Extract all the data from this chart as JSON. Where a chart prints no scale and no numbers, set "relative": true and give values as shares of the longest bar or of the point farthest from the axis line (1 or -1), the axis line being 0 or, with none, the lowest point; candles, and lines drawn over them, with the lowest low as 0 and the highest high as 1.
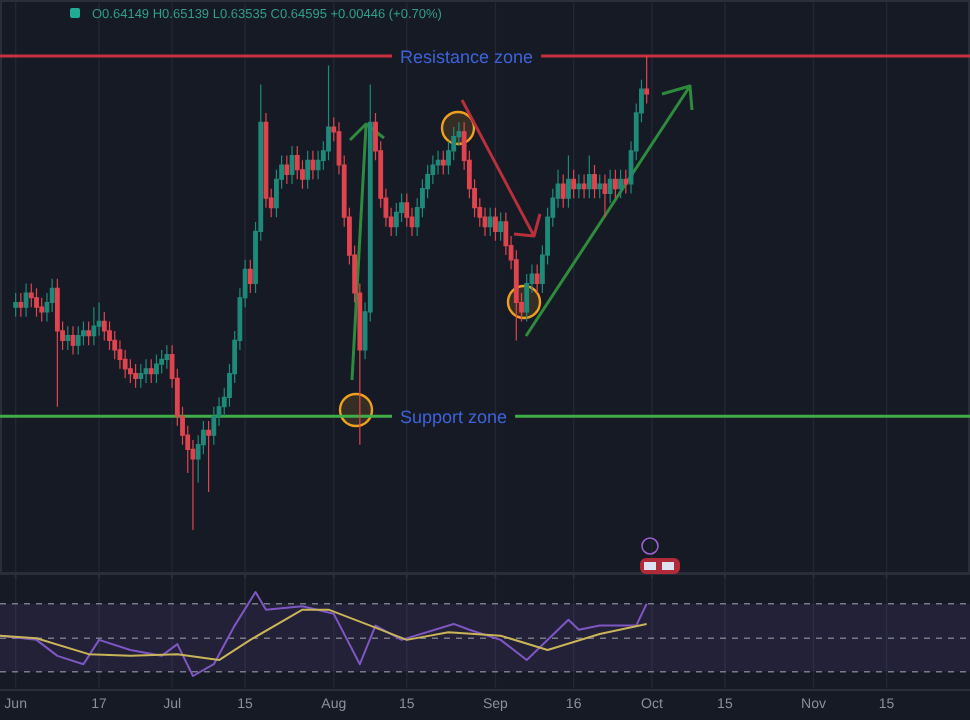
{
  "chart_data": [
    {
      "type": "candlestick",
      "relative": true,
      "tick_labels": false,
      "grid": "x",
      "annotations": [
        "O0.64149 H0.65139 L0.63535 C0.64595 +0.00446 (+0.70%)"
      ],
      "xlim": [
        "--05-29",
        "--12-01"
      ],
      "xticks": [
        {
          "value": "--06-01",
          "label": null
        },
        {
          "value": "--06-17",
          "label": null
        },
        {
          "value": "--07-01",
          "label": null
        },
        {
          "value": "--07-15",
          "label": null
        },
        {
          "value": "--08-01",
          "label": null
        },
        {
          "value": "--08-15",
          "label": null
        },
        {
          "value": "--09-01",
          "label": null
        },
        {
          "value": "--09-16",
          "label": null
        },
        {
          "value": "--10-01",
          "label": null
        },
        {
          "value": "--10-15",
          "label": null
        },
        {
          "value": "--11-01",
          "label": null
        },
        {
          "value": "--11-15",
          "label": null
        }
      ],
      "ref_lines": [
        {
          "axis": "y",
          "value": 1.0,
          "label": "Resistance zone",
          "color": "#c8303f"
        },
        {
          "axis": "y",
          "value": 0.24,
          "label": "Support zone",
          "color": "#3fae49"
        }
      ],
      "x": [
        "--06-01",
        "--06-02",
        "--06-03",
        "--06-04",
        "--06-05",
        "--06-06",
        "--06-07",
        "--06-08",
        "--06-09",
        "--06-10",
        "--06-11",
        "--06-12",
        "--06-13",
        "--06-14",
        "--06-15",
        "--06-16",
        "--06-17",
        "--06-18",
        "--06-19",
        "--06-20",
        "--06-21",
        "--06-22",
        "--06-23",
        "--06-24",
        "--06-25",
        "--06-26",
        "--06-27",
        "--06-28",
        "--06-29",
        "--06-30",
        "--07-01",
        "--07-02",
        "--07-03",
        "--07-04",
        "--07-05",
        "--07-06",
        "--07-07",
        "--07-08",
        "--07-09",
        "--07-10",
        "--07-11",
        "--07-12",
        "--07-13",
        "--07-14",
        "--07-15",
        "--07-16",
        "--07-17",
        "--07-18",
        "--07-19",
        "--07-20",
        "--07-21",
        "--07-22",
        "--07-23",
        "--07-24",
        "--07-25",
        "--07-26",
        "--07-27",
        "--07-28",
        "--07-29",
        "--07-30",
        "--07-31",
        "--08-01",
        "--08-02",
        "--08-03",
        "--08-04",
        "--08-05",
        "--08-06",
        "--08-07",
        "--08-08",
        "--08-09",
        "--08-10",
        "--08-11",
        "--08-12",
        "--08-13",
        "--08-14",
        "--08-15",
        "--08-16",
        "--08-17",
        "--08-18",
        "--08-19",
        "--08-20",
        "--08-21",
        "--08-22",
        "--08-23",
        "--08-24",
        "--08-25",
        "--08-26",
        "--08-27",
        "--08-28",
        "--08-29",
        "--08-30",
        "--08-31",
        "--09-01",
        "--09-02",
        "--09-03",
        "--09-04",
        "--09-05",
        "--09-06",
        "--09-07",
        "--09-08",
        "--09-09",
        "--09-10",
        "--09-11",
        "--09-12",
        "--09-13",
        "--09-14",
        "--09-15",
        "--09-16",
        "--09-17",
        "--09-18",
        "--09-19",
        "--09-20",
        "--09-21",
        "--09-22",
        "--09-23",
        "--09-24",
        "--09-25",
        "--09-26",
        "--09-27",
        "--09-28",
        "--09-29",
        "--09-30"
      ],
      "ohlc": [
        [
          0.47,
          0.5,
          0.45,
          0.48
        ],
        [
          0.48,
          0.5,
          0.45,
          0.47
        ],
        [
          0.47,
          0.52,
          0.45,
          0.5
        ],
        [
          0.5,
          0.52,
          0.47,
          0.49
        ],
        [
          0.49,
          0.51,
          0.45,
          0.47
        ],
        [
          0.47,
          0.49,
          0.44,
          0.46
        ],
        [
          0.46,
          0.5,
          0.44,
          0.48
        ],
        [
          0.48,
          0.53,
          0.46,
          0.51
        ],
        [
          0.51,
          0.53,
          0.26,
          0.42
        ],
        [
          0.42,
          0.44,
          0.38,
          0.4
        ],
        [
          0.4,
          0.43,
          0.38,
          0.41
        ],
        [
          0.41,
          0.43,
          0.37,
          0.39
        ],
        [
          0.39,
          0.43,
          0.37,
          0.41
        ],
        [
          0.41,
          0.44,
          0.39,
          0.42
        ],
        [
          0.42,
          0.44,
          0.39,
          0.41
        ],
        [
          0.41,
          0.47,
          0.39,
          0.43
        ],
        [
          0.43,
          0.48,
          0.41,
          0.44
        ],
        [
          0.44,
          0.46,
          0.4,
          0.42
        ],
        [
          0.42,
          0.44,
          0.38,
          0.4
        ],
        [
          0.4,
          0.42,
          0.36,
          0.38
        ],
        [
          0.38,
          0.4,
          0.34,
          0.36
        ],
        [
          0.36,
          0.38,
          0.32,
          0.34
        ],
        [
          0.34,
          0.36,
          0.31,
          0.33
        ],
        [
          0.33,
          0.35,
          0.3,
          0.32
        ],
        [
          0.32,
          0.35,
          0.3,
          0.33
        ],
        [
          0.33,
          0.36,
          0.31,
          0.34
        ],
        [
          0.34,
          0.36,
          0.31,
          0.33
        ],
        [
          0.33,
          0.37,
          0.31,
          0.35
        ],
        [
          0.35,
          0.38,
          0.33,
          0.36
        ],
        [
          0.36,
          0.39,
          0.34,
          0.37
        ],
        [
          0.37,
          0.39,
          0.3,
          0.32
        ],
        [
          0.32,
          0.34,
          0.22,
          0.24
        ],
        [
          0.24,
          0.26,
          0.18,
          0.2
        ],
        [
          0.2,
          0.22,
          0.12,
          0.17
        ],
        [
          0.17,
          0.19,
          0.0,
          0.15
        ],
        [
          0.15,
          0.2,
          0.1,
          0.18
        ],
        [
          0.18,
          0.23,
          0.16,
          0.21
        ],
        [
          0.21,
          0.23,
          0.08,
          0.2
        ],
        [
          0.2,
          0.26,
          0.18,
          0.24
        ],
        [
          0.24,
          0.28,
          0.22,
          0.26
        ],
        [
          0.26,
          0.3,
          0.24,
          0.28
        ],
        [
          0.28,
          0.35,
          0.26,
          0.33
        ],
        [
          0.33,
          0.42,
          0.31,
          0.4
        ],
        [
          0.4,
          0.51,
          0.38,
          0.49
        ],
        [
          0.49,
          0.57,
          0.47,
          0.55
        ],
        [
          0.55,
          0.57,
          0.5,
          0.52
        ],
        [
          0.52,
          0.65,
          0.5,
          0.63
        ],
        [
          0.63,
          0.94,
          0.61,
          0.86
        ],
        [
          0.86,
          0.88,
          0.68,
          0.7
        ],
        [
          0.7,
          0.72,
          0.66,
          0.68
        ],
        [
          0.68,
          0.76,
          0.66,
          0.74
        ],
        [
          0.74,
          0.79,
          0.72,
          0.77
        ],
        [
          0.77,
          0.79,
          0.73,
          0.75
        ],
        [
          0.75,
          0.81,
          0.73,
          0.79
        ],
        [
          0.79,
          0.81,
          0.74,
          0.76
        ],
        [
          0.76,
          0.78,
          0.72,
          0.74
        ],
        [
          0.74,
          0.8,
          0.72,
          0.78
        ],
        [
          0.78,
          0.8,
          0.74,
          0.76
        ],
        [
          0.76,
          0.8,
          0.74,
          0.78
        ],
        [
          0.78,
          0.82,
          0.76,
          0.8
        ],
        [
          0.8,
          0.98,
          0.78,
          0.85
        ],
        [
          0.85,
          0.87,
          0.82,
          0.84
        ],
        [
          0.84,
          0.86,
          0.75,
          0.77
        ],
        [
          0.77,
          0.79,
          0.64,
          0.66
        ],
        [
          0.66,
          0.68,
          0.56,
          0.58
        ],
        [
          0.58,
          0.6,
          0.48,
          0.5
        ],
        [
          0.5,
          0.52,
          0.18,
          0.38
        ],
        [
          0.38,
          0.48,
          0.36,
          0.46
        ],
        [
          0.46,
          0.94,
          0.44,
          0.86
        ],
        [
          0.86,
          0.88,
          0.78,
          0.8
        ],
        [
          0.8,
          0.82,
          0.68,
          0.7
        ],
        [
          0.7,
          0.72,
          0.64,
          0.66
        ],
        [
          0.66,
          0.68,
          0.62,
          0.64
        ],
        [
          0.64,
          0.69,
          0.62,
          0.67
        ],
        [
          0.67,
          0.71,
          0.65,
          0.69
        ],
        [
          0.69,
          0.71,
          0.64,
          0.66
        ],
        [
          0.66,
          0.68,
          0.62,
          0.64
        ],
        [
          0.64,
          0.7,
          0.62,
          0.68
        ],
        [
          0.68,
          0.74,
          0.66,
          0.72
        ],
        [
          0.72,
          0.77,
          0.7,
          0.75
        ],
        [
          0.75,
          0.79,
          0.73,
          0.77
        ],
        [
          0.77,
          0.8,
          0.75,
          0.78
        ],
        [
          0.78,
          0.8,
          0.75,
          0.77
        ],
        [
          0.77,
          0.82,
          0.75,
          0.8
        ],
        [
          0.8,
          0.85,
          0.78,
          0.83
        ],
        [
          0.83,
          0.86,
          0.81,
          0.84
        ],
        [
          0.84,
          0.86,
          0.76,
          0.78
        ],
        [
          0.78,
          0.8,
          0.7,
          0.72
        ],
        [
          0.72,
          0.74,
          0.66,
          0.68
        ],
        [
          0.68,
          0.7,
          0.64,
          0.66
        ],
        [
          0.66,
          0.68,
          0.62,
          0.64
        ],
        [
          0.64,
          0.68,
          0.62,
          0.66
        ],
        [
          0.66,
          0.68,
          0.61,
          0.63
        ],
        [
          0.63,
          0.67,
          0.61,
          0.65
        ],
        [
          0.65,
          0.67,
          0.58,
          0.6
        ],
        [
          0.6,
          0.62,
          0.55,
          0.57
        ],
        [
          0.57,
          0.59,
          0.4,
          0.48
        ],
        [
          0.48,
          0.5,
          0.44,
          0.46
        ],
        [
          0.46,
          0.54,
          0.44,
          0.52
        ],
        [
          0.52,
          0.56,
          0.5,
          0.54
        ],
        [
          0.54,
          0.56,
          0.5,
          0.52
        ],
        [
          0.52,
          0.6,
          0.5,
          0.58
        ],
        [
          0.58,
          0.68,
          0.56,
          0.66
        ],
        [
          0.66,
          0.72,
          0.64,
          0.7
        ],
        [
          0.7,
          0.76,
          0.68,
          0.73
        ],
        [
          0.73,
          0.75,
          0.68,
          0.7
        ],
        [
          0.7,
          0.79,
          0.68,
          0.74
        ],
        [
          0.74,
          0.76,
          0.7,
          0.72
        ],
        [
          0.72,
          0.75,
          0.7,
          0.73
        ],
        [
          0.73,
          0.75,
          0.7,
          0.72
        ],
        [
          0.72,
          0.79,
          0.7,
          0.75
        ],
        [
          0.75,
          0.77,
          0.7,
          0.72
        ],
        [
          0.72,
          0.75,
          0.7,
          0.73
        ],
        [
          0.73,
          0.75,
          0.66,
          0.71
        ],
        [
          0.71,
          0.76,
          0.69,
          0.74
        ],
        [
          0.74,
          0.76,
          0.7,
          0.72
        ],
        [
          0.72,
          0.76,
          0.7,
          0.74
        ],
        [
          0.74,
          0.76,
          0.71,
          0.73
        ],
        [
          0.73,
          0.82,
          0.71,
          0.8
        ],
        [
          0.8,
          0.9,
          0.78,
          0.88
        ],
        [
          0.88,
          0.95,
          0.86,
          0.93
        ],
        [
          0.93,
          1.0,
          0.9,
          0.92
        ]
      ]
    },
    {
      "type": "line",
      "relative": true,
      "tick_labels": "x",
      "grid": "x",
      "marker": "none",
      "xlim": [
        "--05-29",
        "--12-01"
      ],
      "xticks": [
        {
          "value": "--06-01",
          "label": "Jun"
        },
        {
          "value": "--06-17",
          "label": "17"
        },
        {
          "value": "--07-01",
          "label": "Jul"
        },
        {
          "value": "--07-15",
          "label": "15"
        },
        {
          "value": "--08-01",
          "label": "Aug"
        },
        {
          "value": "--08-15",
          "label": "15"
        },
        {
          "value": "--09-01",
          "label": "Sep"
        },
        {
          "value": "--09-16",
          "label": "16"
        },
        {
          "value": "--10-01",
          "label": "Oct"
        },
        {
          "value": "--10-15",
          "label": "15"
        },
        {
          "value": "--11-01",
          "label": "Nov"
        },
        {
          "value": "--11-15",
          "label": "15"
        }
      ],
      "bands": [
        {
          "axis": "y",
          "from": 0.05,
          "to": 0.86,
          "color": "#7e57c2"
        }
      ],
      "ref_lines": [
        {
          "axis": "y",
          "value": 0.86,
          "color": "#787b86",
          "line_style": "dashed"
        },
        {
          "axis": "y",
          "value": 0.45,
          "color": "#787b86",
          "line_style": "dashed"
        },
        {
          "axis": "y",
          "value": 0.05,
          "color": "#787b86",
          "line_style": "dashed"
        }
      ],
      "series": [
        {
          "color": "#7e57c2",
          "x": [
            "--05-29",
            "--06-05",
            "--06-09",
            "--06-14",
            "--06-17",
            "--06-23",
            "--06-29",
            "--07-02",
            "--07-05",
            "--07-09",
            "--07-13",
            "--07-17",
            "--07-19",
            "--07-26",
            "--08-01",
            "--08-06",
            "--08-09",
            "--08-14",
            "--08-24",
            "--08-27",
            "--09-02",
            "--09-07",
            "--09-15",
            "--09-17",
            "--09-21",
            "--09-28",
            "--09-30"
          ],
          "values": [
            0.48,
            0.43,
            0.24,
            0.14,
            0.43,
            0.31,
            0.24,
            0.38,
            0,
            0.14,
            0.6,
            1,
            0.79,
            0.83,
            0.74,
            0.14,
            0.6,
            0.43,
            0.62,
            0.55,
            0.43,
            0.19,
            0.67,
            0.55,
            0.6,
            0.6,
            0.86
          ]
        },
        {
          "color": "#c9b458",
          "x": [
            "--05-29",
            "--06-05",
            "--06-15",
            "--06-23",
            "--07-02",
            "--07-10",
            "--07-16",
            "--07-26",
            "--07-31",
            "--08-08",
            "--08-15",
            "--08-23",
            "--09-02",
            "--09-11",
            "--09-21",
            "--09-30"
          ],
          "values": [
            0.48,
            0.45,
            0.26,
            0.24,
            0.26,
            0.19,
            0.43,
            0.79,
            0.79,
            0.6,
            0.43,
            0.52,
            0.48,
            0.31,
            0.5,
            0.62
          ]
        }
      ]
    }
  ]
}
